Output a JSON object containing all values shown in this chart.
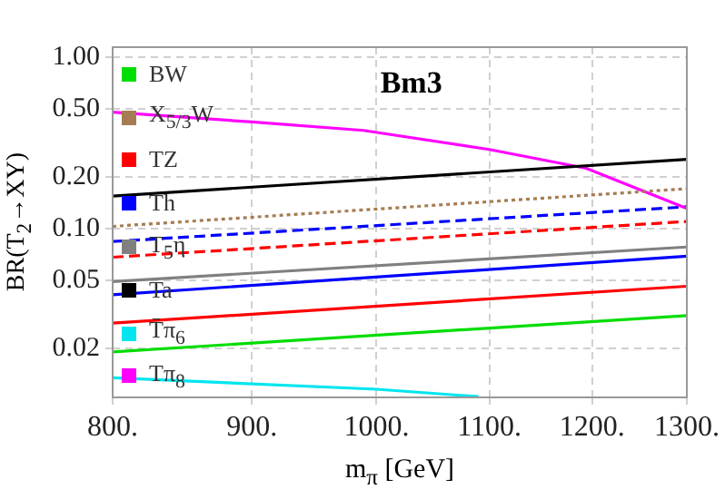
{
  "chart_data": {
    "type": "line",
    "title": "Bm3",
    "xlabel": "m$_{π}$ [GeV]",
    "ylabel": "BR(T$_{2}$→XY)",
    "log": "xy",
    "grid": true,
    "legend": "left",
    "marker": "none",
    "xlim": [
      800,
      1300
    ],
    "ylim": [
      0.0103,
      1.15
    ],
    "xticks": [
      {
        "value": 800,
        "label": "800."
      },
      {
        "value": 900,
        "label": "900."
      },
      {
        "value": 1000,
        "label": "1000."
      },
      {
        "value": 1100,
        "label": "1100."
      },
      {
        "value": 1200,
        "label": "1200."
      },
      {
        "value": 1300,
        "label": "1300."
      }
    ],
    "yticks": [
      {
        "value": 0.02,
        "label": "0.02"
      },
      {
        "value": 0.05,
        "label": "0.05"
      },
      {
        "value": 0.1,
        "label": "0.10"
      },
      {
        "value": 0.2,
        "label": "0.20"
      },
      {
        "value": 0.5,
        "label": "0.50"
      },
      {
        "value": 1,
        "label": "1.00"
      }
    ],
    "series": [
      {
        "name": "BW",
        "color": "#00dd00",
        "line_style": "solid",
        "x": [
          800,
          1300
        ],
        "values": [
          0.019,
          0.031
        ]
      },
      {
        "name": "X$_{5/3}$W",
        "color": "#a67c52",
        "line_style": "dotted",
        "x": [
          800,
          1300
        ],
        "values": [
          0.103,
          0.171
        ]
      },
      {
        "name": "TZ",
        "color": "#ff0000",
        "line_style": "solid",
        "x": [
          800,
          1300
        ],
        "values": [
          0.028,
          0.046
        ]
      },
      {
        "name": "Th",
        "color": "#0000ff",
        "line_style": "solid",
        "x": [
          800,
          1300
        ],
        "values": [
          0.041,
          0.069
        ]
      },
      {
        "name": "T$_{5}$η",
        "color": "#808080",
        "line_style": "solid",
        "x": [
          800,
          1300
        ],
        "values": [
          0.049,
          0.078
        ]
      },
      {
        "name": "Ta",
        "color": "#000000",
        "line_style": "solid",
        "x": [
          800,
          1300
        ],
        "values": [
          0.155,
          0.254
        ]
      },
      {
        "name": "T̄π$_{6}$",
        "color": "#00e5ee",
        "line_style": "solid",
        "x": [
          800,
          1000,
          1090
        ],
        "values": [
          0.0134,
          0.0115,
          0.0104
        ]
      },
      {
        "name": "Tπ$_{8}$",
        "color": "#ff00ff",
        "line_style": "solid",
        "x": [
          800,
          900,
          989,
          1100,
          1194,
          1300
        ],
        "values": [
          0.48,
          0.42,
          0.375,
          0.29,
          0.225,
          0.131
        ]
      },
      {
        "color": "#0000ff",
        "line_style": "dashed",
        "x": [
          800,
          1300
        ],
        "values": [
          0.084,
          0.134
        ]
      },
      {
        "color": "#ff0000",
        "line_style": "dashed",
        "x": [
          800,
          1300
        ],
        "values": [
          0.068,
          0.11
        ]
      }
    ]
  }
}
